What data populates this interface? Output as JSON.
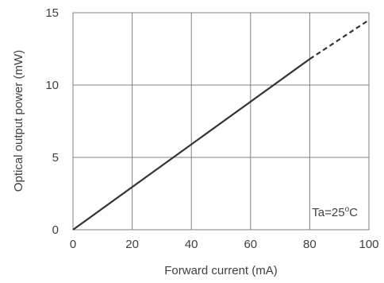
{
  "chart_data": {
    "type": "line",
    "title": "",
    "xlabel": "Forward current  (mA)",
    "ylabel": "Optical output power  (mW)",
    "xlim": [
      0,
      100
    ],
    "ylim": [
      0,
      15
    ],
    "xticks": [
      "0",
      "20",
      "40",
      "60",
      "80",
      "100"
    ],
    "yticks": [
      "0",
      "5",
      "10",
      "15"
    ],
    "grid": true,
    "legend": "none",
    "series": [
      {
        "style": "solid",
        "x": [
          0,
          80
        ],
        "y": [
          0,
          11.8
        ]
      },
      {
        "style": "dashed",
        "x": [
          80,
          100
        ],
        "y": [
          11.8,
          14.5
        ]
      }
    ],
    "annotation": {
      "base": "Ta=25",
      "sup": "o",
      "unit": "C"
    }
  }
}
